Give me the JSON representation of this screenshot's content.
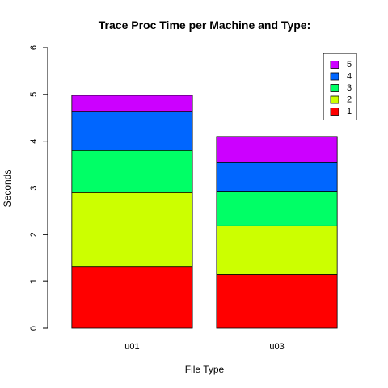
{
  "chart_data": {
    "type": "bar",
    "stacked": true,
    "title": "Trace Proc Time per Machine and Type:",
    "xlabel": "File Type",
    "ylabel": "Seconds",
    "ylim": [
      0,
      6
    ],
    "yticks": [
      "0",
      "1",
      "2",
      "3",
      "4",
      "5",
      "6"
    ],
    "categories": [
      "u01",
      "u03"
    ],
    "series": [
      {
        "name": "1",
        "color": "#ff0000",
        "values": [
          1.32,
          1.15
        ]
      },
      {
        "name": "2",
        "color": "#ccff00",
        "values": [
          1.58,
          1.04
        ]
      },
      {
        "name": "3",
        "color": "#00ff66",
        "values": [
          0.9,
          0.74
        ]
      },
      {
        "name": "4",
        "color": "#0066ff",
        "values": [
          0.84,
          0.61
        ]
      },
      {
        "name": "5",
        "color": "#cc00ff",
        "values": [
          0.34,
          0.56
        ]
      }
    ],
    "legend": {
      "position": "top-right",
      "order": [
        "5",
        "4",
        "3",
        "2",
        "1"
      ]
    }
  }
}
